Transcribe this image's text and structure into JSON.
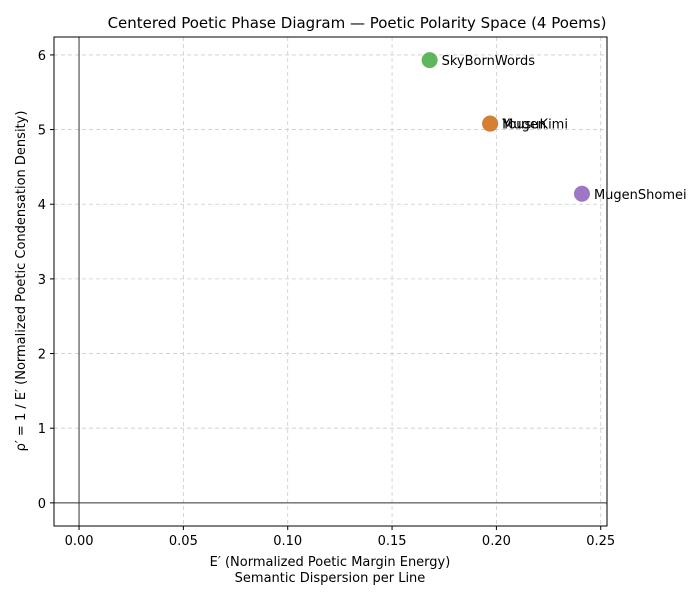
{
  "chart_data": {
    "type": "scatter",
    "title": "Centered Poetic Phase Diagram — Poetic Polarity Space (4 Poems)",
    "xlabel_line1": "E′ (Normalized Poetic Margin Energy)",
    "xlabel_line2": "Semantic Dispersion per Line",
    "ylabel": "ρ′ = 1 / E′ (Normalized Poetic Condensation Density)",
    "xlim": [
      -0.012,
      0.253
    ],
    "ylim": [
      -0.31,
      6.24
    ],
    "x_ticks": [
      0.0,
      0.05,
      0.1,
      0.15,
      0.2,
      0.25
    ],
    "x_tick_labels": [
      "0.00",
      "0.05",
      "0.10",
      "0.15",
      "0.20",
      "0.25"
    ],
    "y_ticks": [
      0,
      1,
      2,
      3,
      4,
      5,
      6
    ],
    "y_tick_labels": [
      "0",
      "1",
      "2",
      "3",
      "4",
      "5",
      "6"
    ],
    "grid": true,
    "reference_lines": {
      "x": 0,
      "y": 0
    },
    "points": [
      {
        "label": "SkyBornWords",
        "x": 0.168,
        "y": 5.93,
        "color": "#4daf4a"
      },
      {
        "label": "Mugen",
        "x": 0.197,
        "y": 5.08,
        "color": "#1f77b4"
      },
      {
        "label": "YousuKimi",
        "x": 0.197,
        "y": 5.08,
        "color": "#e67e22"
      },
      {
        "label": "MugenShomei",
        "x": 0.241,
        "y": 4.14,
        "color": "#9467bd"
      }
    ]
  }
}
